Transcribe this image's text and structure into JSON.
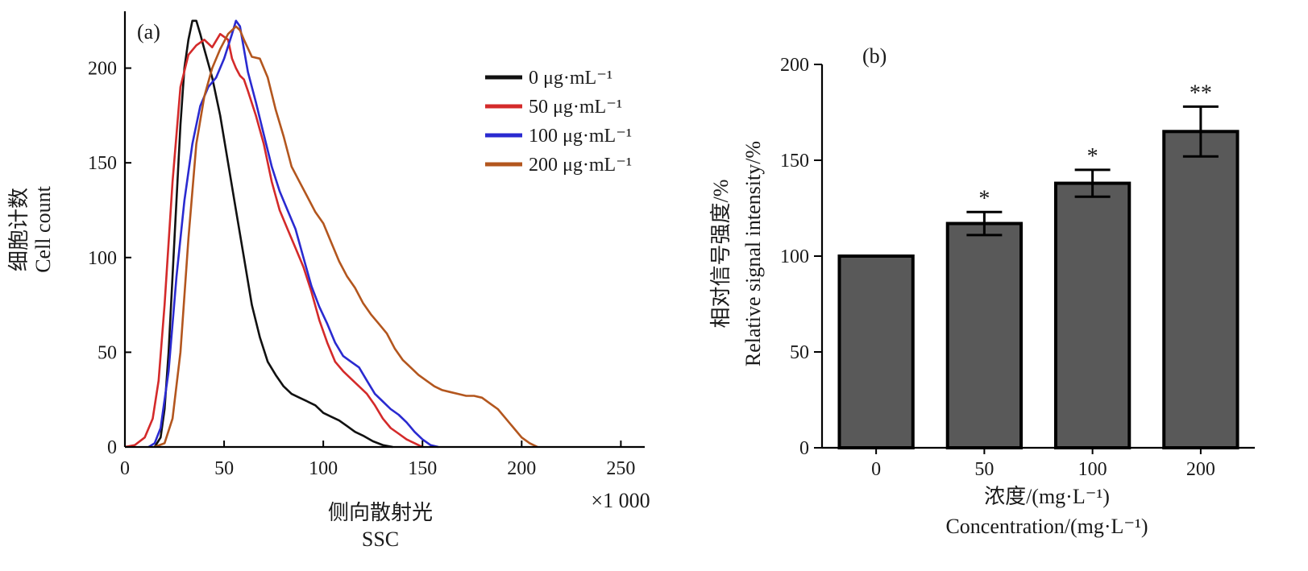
{
  "panel_a": {
    "panel_label": "(a)",
    "ylabel_cn": "细胞计数",
    "ylabel_en": "Cell count",
    "xlabel_cn": "侧向散射光",
    "xlabel_en": "SSC",
    "x_multiplier": "×1 000"
  },
  "panel_b": {
    "panel_label": "(b)",
    "ylabel_cn": "相对信号强度/%",
    "ylabel_en": "Relative signal intensity/%",
    "xlabel_cn": "浓度/(mg·L⁻¹)",
    "xlabel_en": "Concentration/(mg·L⁻¹)"
  },
  "chart_data": [
    {
      "type": "line",
      "xlim": [
        0,
        260
      ],
      "ylim": [
        0,
        230
      ],
      "xticks": [
        "0",
        "50",
        "100",
        "150",
        "200",
        "250"
      ],
      "yticks": [
        "0",
        "50",
        "100",
        "150",
        "200"
      ],
      "legend_position": "top-right",
      "series": [
        {
          "name": "0 μg·mL⁻¹",
          "color": "#111111",
          "points": [
            [
              15,
              0
            ],
            [
              18,
              5
            ],
            [
              20,
              20
            ],
            [
              22,
              50
            ],
            [
              25,
              110
            ],
            [
              28,
              170
            ],
            [
              30,
              200
            ],
            [
              32,
              215
            ],
            [
              34,
              225
            ],
            [
              36,
              225
            ],
            [
              38,
              218
            ],
            [
              40,
              210
            ],
            [
              44,
              195
            ],
            [
              48,
              175
            ],
            [
              52,
              150
            ],
            [
              56,
              125
            ],
            [
              60,
              100
            ],
            [
              64,
              75
            ],
            [
              68,
              58
            ],
            [
              72,
              45
            ],
            [
              76,
              38
            ],
            [
              80,
              32
            ],
            [
              84,
              28
            ],
            [
              88,
              26
            ],
            [
              92,
              24
            ],
            [
              96,
              22
            ],
            [
              100,
              18
            ],
            [
              104,
              16
            ],
            [
              108,
              14
            ],
            [
              112,
              11
            ],
            [
              116,
              8
            ],
            [
              120,
              6
            ],
            [
              125,
              3
            ],
            [
              130,
              1
            ],
            [
              135,
              0
            ]
          ]
        },
        {
          "name": "50 μg·mL⁻¹",
          "color": "#d42a2a",
          "points": [
            [
              0,
              0
            ],
            [
              5,
              1
            ],
            [
              10,
              5
            ],
            [
              14,
              15
            ],
            [
              17,
              35
            ],
            [
              20,
              75
            ],
            [
              24,
              140
            ],
            [
              28,
              190
            ],
            [
              32,
              207
            ],
            [
              36,
              212
            ],
            [
              40,
              215
            ],
            [
              44,
              211
            ],
            [
              48,
              218
            ],
            [
              52,
              215
            ],
            [
              54,
              205
            ],
            [
              56,
              200
            ],
            [
              58,
              196
            ],
            [
              60,
              194
            ],
            [
              62,
              188
            ],
            [
              66,
              175
            ],
            [
              70,
              160
            ],
            [
              74,
              140
            ],
            [
              78,
              125
            ],
            [
              82,
              115
            ],
            [
              86,
              105
            ],
            [
              90,
              95
            ],
            [
              94,
              82
            ],
            [
              98,
              67
            ],
            [
              102,
              55
            ],
            [
              106,
              45
            ],
            [
              110,
              40
            ],
            [
              114,
              36
            ],
            [
              118,
              32
            ],
            [
              122,
              28
            ],
            [
              126,
              22
            ],
            [
              130,
              15
            ],
            [
              134,
              10
            ],
            [
              138,
              7
            ],
            [
              142,
              4
            ],
            [
              146,
              2
            ],
            [
              150,
              0
            ]
          ]
        },
        {
          "name": "100 μg·mL⁻¹",
          "color": "#2a2ad0",
          "points": [
            [
              12,
              0
            ],
            [
              15,
              2
            ],
            [
              18,
              10
            ],
            [
              22,
              40
            ],
            [
              26,
              90
            ],
            [
              30,
              130
            ],
            [
              34,
              160
            ],
            [
              38,
              180
            ],
            [
              42,
              190
            ],
            [
              46,
              195
            ],
            [
              50,
              205
            ],
            [
              54,
              218
            ],
            [
              56,
              225
            ],
            [
              58,
              222
            ],
            [
              60,
              210
            ],
            [
              62,
              198
            ],
            [
              66,
              182
            ],
            [
              70,
              165
            ],
            [
              74,
              148
            ],
            [
              78,
              135
            ],
            [
              82,
              125
            ],
            [
              86,
              115
            ],
            [
              90,
              100
            ],
            [
              94,
              85
            ],
            [
              98,
              74
            ],
            [
              102,
              65
            ],
            [
              106,
              55
            ],
            [
              110,
              48
            ],
            [
              114,
              45
            ],
            [
              118,
              42
            ],
            [
              122,
              35
            ],
            [
              126,
              28
            ],
            [
              130,
              24
            ],
            [
              134,
              20
            ],
            [
              138,
              17
            ],
            [
              142,
              13
            ],
            [
              146,
              8
            ],
            [
              150,
              4
            ],
            [
              154,
              1
            ],
            [
              158,
              0
            ]
          ]
        },
        {
          "name": "200 μg·mL⁻¹",
          "color": "#b3561e",
          "points": [
            [
              15,
              0
            ],
            [
              20,
              2
            ],
            [
              24,
              15
            ],
            [
              28,
              50
            ],
            [
              32,
              110
            ],
            [
              36,
              160
            ],
            [
              40,
              185
            ],
            [
              44,
              200
            ],
            [
              48,
              210
            ],
            [
              52,
              218
            ],
            [
              56,
              222
            ],
            [
              58,
              220
            ],
            [
              60,
              215
            ],
            [
              64,
              206
            ],
            [
              68,
              205
            ],
            [
              72,
              195
            ],
            [
              76,
              178
            ],
            [
              80,
              164
            ],
            [
              84,
              148
            ],
            [
              88,
              140
            ],
            [
              92,
              132
            ],
            [
              96,
              124
            ],
            [
              100,
              118
            ],
            [
              104,
              108
            ],
            [
              108,
              98
            ],
            [
              112,
              90
            ],
            [
              116,
              84
            ],
            [
              120,
              76
            ],
            [
              124,
              70
            ],
            [
              128,
              65
            ],
            [
              132,
              60
            ],
            [
              136,
              52
            ],
            [
              140,
              46
            ],
            [
              144,
              42
            ],
            [
              148,
              38
            ],
            [
              152,
              35
            ],
            [
              156,
              32
            ],
            [
              160,
              30
            ],
            [
              164,
              29
            ],
            [
              168,
              28
            ],
            [
              172,
              27
            ],
            [
              176,
              27
            ],
            [
              180,
              26
            ],
            [
              184,
              23
            ],
            [
              188,
              20
            ],
            [
              192,
              15
            ],
            [
              196,
              10
            ],
            [
              200,
              5
            ],
            [
              204,
              2
            ],
            [
              208,
              0
            ]
          ]
        }
      ]
    },
    {
      "type": "bar",
      "categories": [
        "0",
        "50",
        "100",
        "200"
      ],
      "values": [
        100,
        117,
        138,
        165
      ],
      "errors": [
        0,
        6,
        7,
        13
      ],
      "significance": [
        "",
        "*",
        "*",
        "**"
      ],
      "ylim": [
        0,
        200
      ],
      "yticks": [
        "0",
        "50",
        "100",
        "150",
        "200"
      ],
      "bar_color": "#595959"
    }
  ]
}
